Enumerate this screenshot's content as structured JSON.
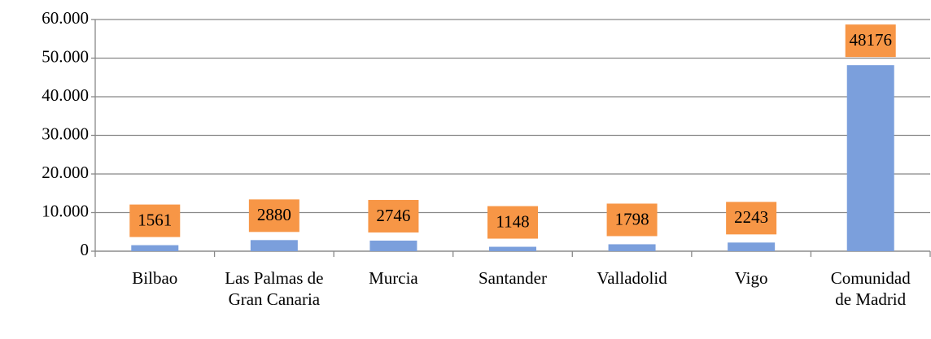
{
  "chart_data": {
    "type": "bar",
    "categories": [
      "Bilbao",
      "Las Palmas de Gran Canaria",
      "Murcia",
      "Santander",
      "Valladolid",
      "Vigo",
      "Comunidad de Madrid"
    ],
    "values": [
      1561,
      2880,
      2746,
      1148,
      1798,
      2243,
      48176
    ],
    "color": "#7b9fdc",
    "label_color": "#f79646",
    "ylim": [
      0,
      60000
    ],
    "yticks": [
      0,
      {
        "value": 10000,
        "label": "10.000"
      },
      {
        "value": 20000,
        "label": "20.000"
      },
      {
        "value": 30000,
        "label": "30.000"
      },
      {
        "value": 40000,
        "label": "40.000"
      },
      {
        "value": 50000,
        "label": "50.000"
      },
      {
        "value": 60000,
        "label": "60.000"
      }
    ],
    "grid": true
  }
}
